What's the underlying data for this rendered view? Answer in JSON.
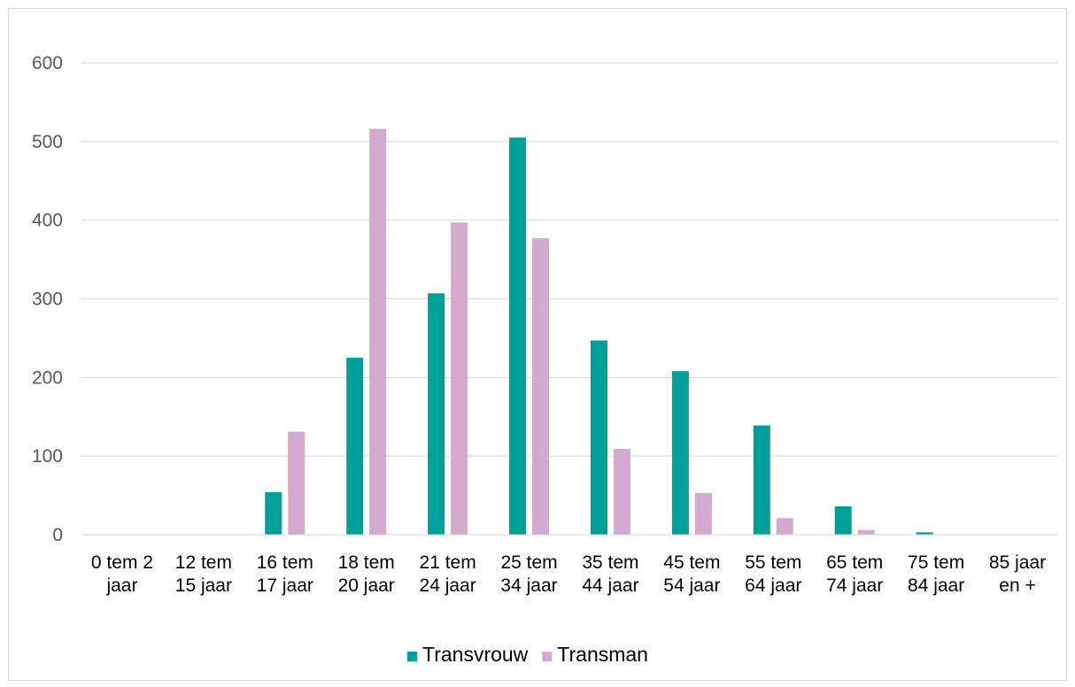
{
  "chart_data": {
    "type": "bar",
    "categories": [
      [
        "0 tem 2",
        "jaar"
      ],
      [
        "12 tem",
        "15 jaar"
      ],
      [
        "16 tem",
        "17 jaar"
      ],
      [
        "18 tem",
        "20 jaar"
      ],
      [
        "21 tem",
        "24 jaar"
      ],
      [
        "25 tem",
        "34 jaar"
      ],
      [
        "35 tem",
        "44 jaar"
      ],
      [
        "45 tem",
        "54 jaar"
      ],
      [
        "55 tem",
        "64 jaar"
      ],
      [
        "65 tem",
        "74 jaar"
      ],
      [
        "75 tem",
        "84 jaar"
      ],
      [
        "85 jaar",
        "en +"
      ]
    ],
    "series": [
      {
        "name": "Transvrouw",
        "color": "#00a09a",
        "values": [
          0,
          0,
          54,
          225,
          307,
          505,
          247,
          208,
          139,
          36,
          3,
          0
        ]
      },
      {
        "name": "Transman",
        "color": "#d4a8cf",
        "values": [
          0,
          0,
          131,
          516,
          397,
          377,
          109,
          53,
          21,
          6,
          0,
          0
        ]
      }
    ],
    "ylim": [
      0,
      600
    ],
    "yticks": [
      0,
      100,
      200,
      300,
      400,
      500,
      600
    ],
    "grid": true,
    "gridline_color": "#d9d9d9",
    "legend_position": "bottom"
  }
}
